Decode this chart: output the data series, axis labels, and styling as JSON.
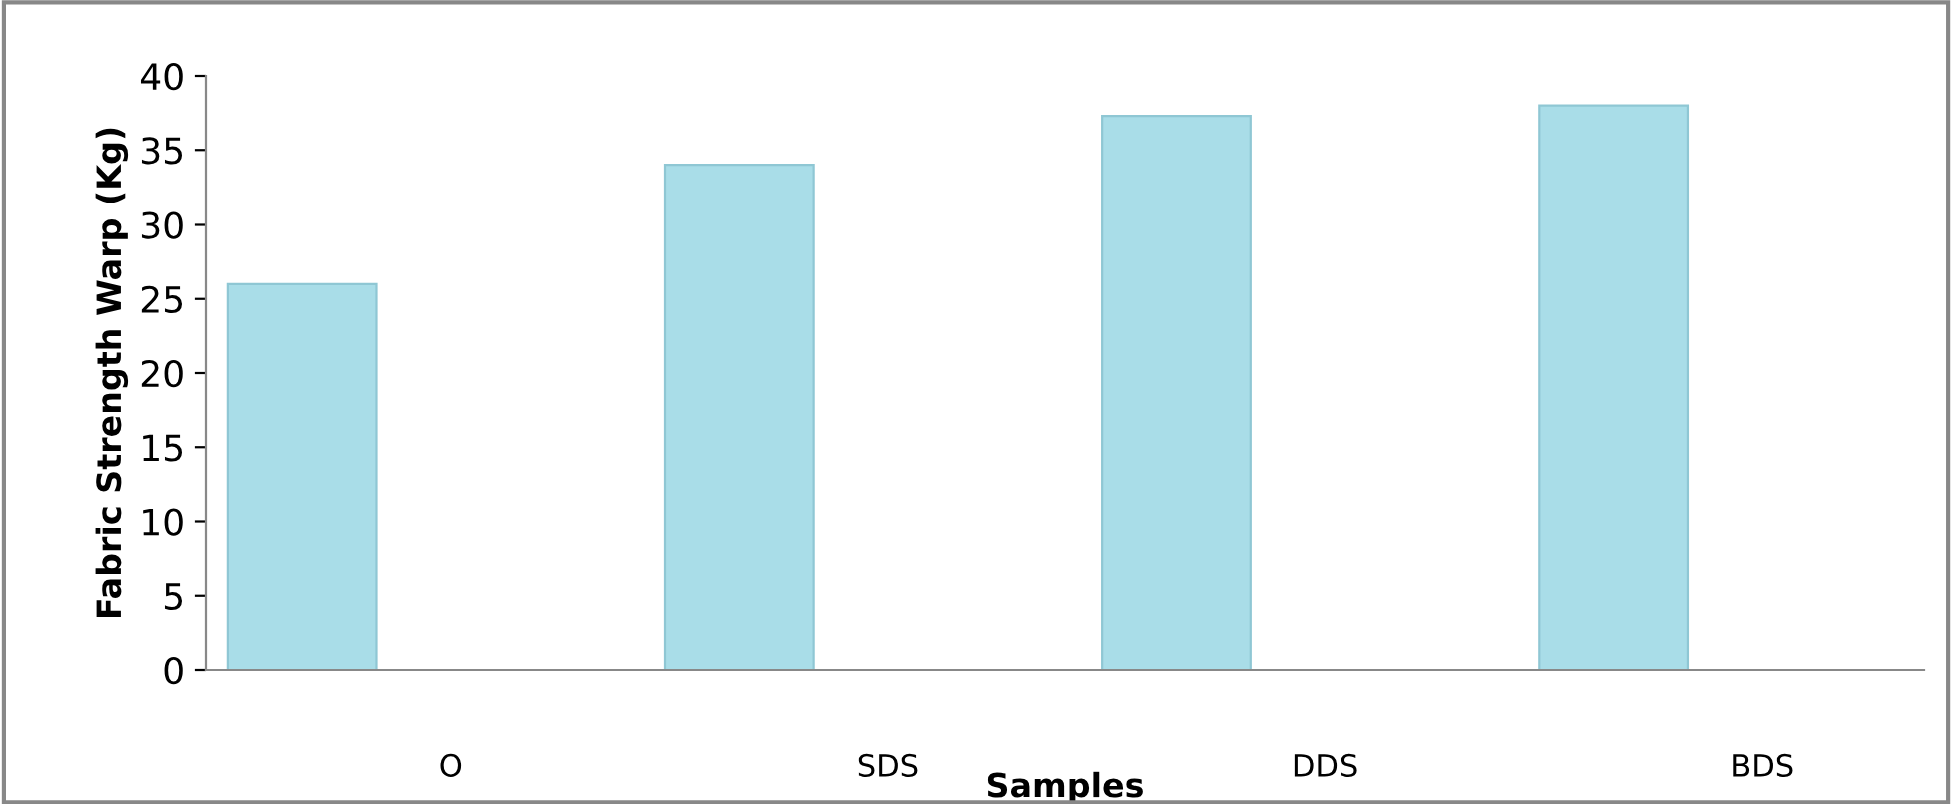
{
  "chart_data": {
    "type": "bar",
    "xlabel": "Samples",
    "ylabel": "Fabric Strength Warp (Kg)",
    "categories": [
      "O",
      "SDS",
      "DDS",
      "BDS"
    ],
    "values": [
      26,
      34,
      37.3,
      38
    ],
    "color": "#a9dde8",
    "ylim": [
      0,
      40
    ],
    "yticks": [
      0,
      5,
      10,
      15,
      20,
      25,
      30,
      35,
      40
    ],
    "grid": false,
    "legend": false
  }
}
